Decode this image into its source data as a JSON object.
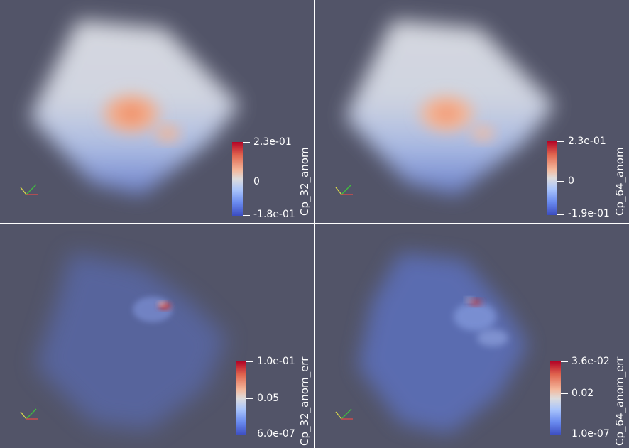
{
  "views": [
    {
      "id": "top-left",
      "field": "Cp_32_anom",
      "colorbar": {
        "max_label": "2.3e-01",
        "mid_label": "0",
        "min_label": "-1.8e-01",
        "title": "Cp_32_anom"
      },
      "colormap": "Cool to Warm"
    },
    {
      "id": "top-right",
      "field": "Cp_64_anom",
      "colorbar": {
        "max_label": "2.3e-01",
        "mid_label": "0",
        "min_label": "-1.9e-01",
        "title": "Cp_64_anom"
      },
      "colormap": "Cool to Warm"
    },
    {
      "id": "bottom-left",
      "field": "Cp_32_anom_err",
      "colorbar": {
        "max_label": "1.0e-01",
        "mid_label": "0.05",
        "min_label": "6.0e-07",
        "title": "Cp_32_anom_err"
      },
      "colormap": "Cool to Warm"
    },
    {
      "id": "bottom-right",
      "field": "Cp_64_anom_err",
      "colorbar": {
        "max_label": "3.6e-02",
        "mid_label": "0.02",
        "min_label": "1.0e-07",
        "title": "Cp_64_anom_err"
      },
      "colormap": "Cool to Warm"
    }
  ],
  "icons": {
    "orientation_axes": "axes-triad-icon"
  },
  "colors": {
    "background": "#525468",
    "divider": "#ffffff",
    "colormap_high": "#b40426",
    "colormap_mid": "#dddcdc",
    "colormap_low": "#3b4cc0",
    "text": "#ffffff"
  }
}
